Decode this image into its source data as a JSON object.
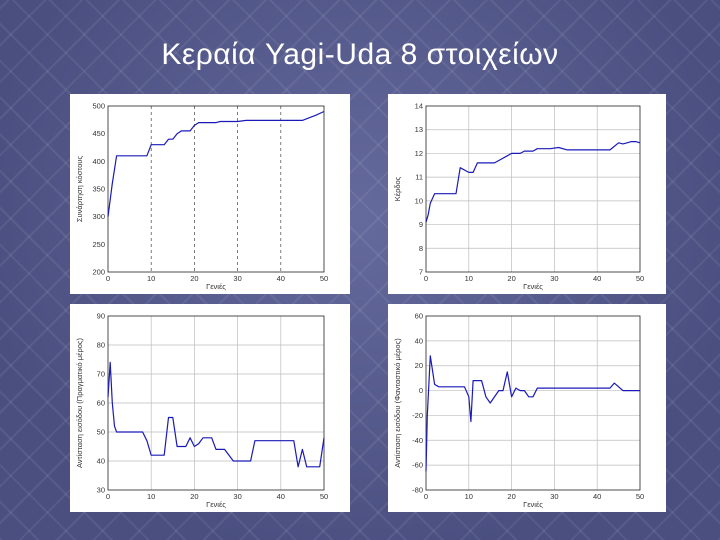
{
  "slide": {
    "title": "Κεραία Yagi-Uda 8 στοιχείων"
  },
  "colors": {
    "line": "#1a1ab8",
    "grid": "#bdbdbd",
    "dashed_grid": "#444444"
  },
  "chart_data": [
    {
      "type": "line",
      "xlabel": "Γενιές",
      "ylabel": "Συνάρτηση κόστους",
      "xlim": [
        0,
        50
      ],
      "ylim": [
        200,
        500
      ],
      "xticks": [
        0,
        10,
        20,
        30,
        40,
        50
      ],
      "yticks": [
        200,
        250,
        300,
        350,
        400,
        450,
        500
      ],
      "grid": "dashed-vertical",
      "x": [
        0,
        1,
        2,
        3,
        5,
        8,
        9,
        10,
        10.5,
        11,
        13,
        14,
        15,
        16,
        17,
        19,
        20,
        21,
        25,
        26,
        28,
        30,
        32,
        40,
        45,
        47,
        48,
        50
      ],
      "y": [
        300,
        360,
        410,
        410,
        410,
        410,
        410,
        430,
        430,
        430,
        430,
        440,
        440,
        450,
        455,
        455,
        465,
        470,
        470,
        472,
        472,
        472,
        474,
        474,
        474,
        480,
        483,
        490
      ]
    },
    {
      "type": "line",
      "xlabel": "Γενιές",
      "ylabel": "Κέρδος",
      "xlim": [
        0,
        50
      ],
      "ylim": [
        7,
        14
      ],
      "xticks": [
        0,
        10,
        20,
        30,
        40,
        50
      ],
      "yticks": [
        7,
        8,
        9,
        10,
        11,
        12,
        13,
        14
      ],
      "grid": "solid",
      "x": [
        0,
        0.5,
        1,
        2,
        5,
        6,
        7,
        8,
        10,
        11,
        12,
        14,
        16,
        17,
        19,
        20,
        22,
        23,
        25,
        26,
        28,
        29,
        31,
        33,
        35,
        37,
        40,
        43,
        45,
        46,
        47,
        48,
        49,
        50
      ],
      "y": [
        9.1,
        9.4,
        9.9,
        10.3,
        10.3,
        10.3,
        10.3,
        11.4,
        11.2,
        11.2,
        11.6,
        11.6,
        11.6,
        11.7,
        11.9,
        12.0,
        12.0,
        12.1,
        12.1,
        12.2,
        12.2,
        12.2,
        12.25,
        12.15,
        12.15,
        12.15,
        12.15,
        12.15,
        12.45,
        12.4,
        12.45,
        12.5,
        12.5,
        12.45
      ]
    },
    {
      "type": "line",
      "xlabel": "Γενιές",
      "ylabel": "Αντίσταση εισόδου (Πραγματικό μέρος)",
      "xlim": [
        0,
        50
      ],
      "ylim": [
        30,
        90
      ],
      "xticks": [
        0,
        10,
        20,
        30,
        40,
        50
      ],
      "yticks": [
        30,
        40,
        50,
        60,
        70,
        80,
        90
      ],
      "grid": "solid",
      "x": [
        0,
        0.5,
        1,
        1.5,
        2,
        3,
        5,
        8,
        9,
        10,
        11,
        13,
        14,
        15,
        16,
        18,
        19,
        20,
        21,
        22,
        23,
        24,
        25,
        27,
        29,
        30,
        32,
        33,
        34,
        38,
        41,
        42,
        43,
        44,
        45,
        46,
        47,
        48,
        49,
        50
      ],
      "y": [
        62,
        74,
        60,
        52,
        50,
        50,
        50,
        50,
        47,
        42,
        42,
        42,
        55,
        55,
        45,
        45,
        48,
        45,
        46,
        48,
        48,
        48,
        44,
        44,
        40,
        40,
        40,
        40,
        47,
        47,
        47,
        47,
        47,
        38,
        44,
        38,
        38,
        38,
        38,
        48
      ]
    },
    {
      "type": "line",
      "xlabel": "Γενιές",
      "ylabel": "Αντίσταση εισόδου (Φανταστικό μέρος)",
      "xlim": [
        0,
        50
      ],
      "ylim": [
        -80,
        60
      ],
      "xticks": [
        0,
        10,
        20,
        30,
        40,
        50
      ],
      "yticks": [
        -80,
        -60,
        -40,
        -20,
        0,
        20,
        40,
        60
      ],
      "grid": "solid",
      "x": [
        0,
        0.3,
        1,
        2,
        3,
        5,
        7,
        8,
        9,
        10,
        10.5,
        11,
        12,
        13,
        14,
        15,
        17,
        18,
        19,
        20,
        21,
        22,
        23,
        24,
        25,
        26,
        28,
        29,
        33,
        35,
        37,
        40,
        41,
        43,
        44,
        45,
        46,
        47,
        48,
        50
      ],
      "y": [
        -65,
        -20,
        28,
        5,
        3,
        3,
        3,
        3,
        3,
        -5,
        -25,
        8,
        8,
        8,
        -5,
        -10,
        0,
        0,
        15,
        -5,
        2,
        0,
        0,
        -5,
        -5,
        2,
        2,
        2,
        2,
        2,
        2,
        2,
        2,
        2,
        6,
        3,
        0,
        0,
        0,
        0
      ]
    }
  ]
}
